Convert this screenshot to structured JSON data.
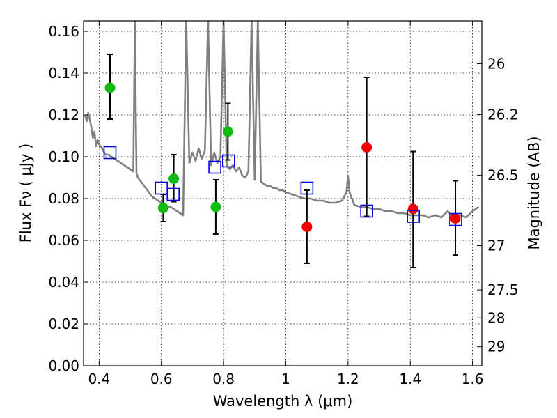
{
  "chart_data": {
    "type": "scatter",
    "xlabel": "Wavelength  λ (μm)",
    "ylabel": "Flux  Fν  ( μJy )",
    "y2label": "Magnitude (AB)",
    "xlim": [
      0.35,
      1.63
    ],
    "ylim": [
      0.0,
      0.165
    ],
    "x_ticks": [
      0.4,
      0.6,
      0.8,
      1.0,
      1.2,
      1.4,
      1.6
    ],
    "x_tick_labels": [
      "0.4",
      "0.6",
      "0.8",
      "1",
      "1.2",
      "1.4",
      "1.6"
    ],
    "y_ticks": [
      0.0,
      0.02,
      0.04,
      0.06,
      0.08,
      0.1,
      0.12,
      0.14,
      0.16
    ],
    "y_tick_labels": [
      "0.00",
      "0.02",
      "0.04",
      "0.06",
      "0.08",
      "0.10",
      "0.12",
      "0.14",
      "0.16"
    ],
    "y2_ticks": [
      {
        "label": "26",
        "flux": 0.1445
      },
      {
        "label": "26.2",
        "flux": 0.1202
      },
      {
        "label": "26.5",
        "flux": 0.0912
      },
      {
        "label": "27",
        "flux": 0.0575
      },
      {
        "label": "27.5",
        "flux": 0.0363
      },
      {
        "label": "28",
        "flux": 0.0229
      },
      {
        "label": "29",
        "flux": 0.0091
      }
    ],
    "grid": true,
    "colors": {
      "model": "#808080",
      "green": "#11bb11",
      "red": "#ee0000",
      "box": "#0000dd",
      "errbar": "#000000"
    },
    "model_spectrum": {
      "x": [
        0.355,
        0.36,
        0.365,
        0.37,
        0.375,
        0.38,
        0.385,
        0.39,
        0.395,
        0.4,
        0.41,
        0.42,
        0.43,
        0.44,
        0.45,
        0.46,
        0.47,
        0.48,
        0.49,
        0.5,
        0.51,
        0.515,
        0.52,
        0.525,
        0.53,
        0.54,
        0.55,
        0.56,
        0.57,
        0.58,
        0.59,
        0.6,
        0.61,
        0.62,
        0.63,
        0.64,
        0.65,
        0.66,
        0.67,
        0.68,
        0.69,
        0.7,
        0.71,
        0.72,
        0.73,
        0.74,
        0.75,
        0.76,
        0.77,
        0.78,
        0.79,
        0.8,
        0.81,
        0.82,
        0.83,
        0.84,
        0.85,
        0.86,
        0.87,
        0.88,
        0.89,
        0.9,
        0.91,
        0.92,
        0.93,
        0.94,
        0.95,
        0.96,
        0.97,
        0.98,
        0.99,
        1.0,
        1.02,
        1.04,
        1.06,
        1.08,
        1.1,
        1.12,
        1.14,
        1.16,
        1.18,
        1.195,
        1.2,
        1.205,
        1.22,
        1.24,
        1.26,
        1.28,
        1.3,
        1.32,
        1.34,
        1.36,
        1.38,
        1.4,
        1.42,
        1.44,
        1.46,
        1.48,
        1.5,
        1.52,
        1.54,
        1.56,
        1.58,
        1.6,
        1.62
      ],
      "y": [
        0.12,
        0.117,
        0.121,
        0.118,
        0.114,
        0.109,
        0.112,
        0.105,
        0.108,
        0.106,
        0.104,
        0.101,
        0.101,
        0.1,
        0.099,
        0.098,
        0.097,
        0.096,
        0.095,
        0.094,
        0.093,
        0.165,
        0.092,
        0.09,
        0.089,
        0.087,
        0.085,
        0.083,
        0.081,
        0.08,
        0.079,
        0.078,
        0.077,
        0.076,
        0.076,
        0.075,
        0.074,
        0.073,
        0.072,
        0.165,
        0.097,
        0.102,
        0.098,
        0.104,
        0.099,
        0.103,
        0.165,
        0.096,
        0.102,
        0.097,
        0.1,
        0.165,
        0.096,
        0.094,
        0.096,
        0.093,
        0.095,
        0.091,
        0.09,
        0.093,
        0.165,
        0.089,
        0.165,
        0.088,
        0.087,
        0.086,
        0.086,
        0.085,
        0.085,
        0.084,
        0.084,
        0.083,
        0.082,
        0.081,
        0.08,
        0.08,
        0.079,
        0.079,
        0.078,
        0.078,
        0.079,
        0.083,
        0.091,
        0.083,
        0.077,
        0.076,
        0.076,
        0.075,
        0.075,
        0.074,
        0.074,
        0.073,
        0.073,
        0.072,
        0.072,
        0.072,
        0.071,
        0.072,
        0.071,
        0.074,
        0.071,
        0.072,
        0.071,
        0.074,
        0.076
      ]
    },
    "series": [
      {
        "marker": "circle",
        "color": "green",
        "points": [
          {
            "x": 0.435,
            "y": 0.133,
            "yerr_lo": 0.118,
            "yerr_hi": 0.149
          },
          {
            "x": 0.606,
            "y": 0.0755,
            "yerr_lo": 0.069,
            "yerr_hi": 0.082
          },
          {
            "x": 0.64,
            "y": 0.0895,
            "yerr_lo": 0.0785,
            "yerr_hi": 0.101
          },
          {
            "x": 0.775,
            "y": 0.076,
            "yerr_lo": 0.063,
            "yerr_hi": 0.089
          },
          {
            "x": 0.814,
            "y": 0.112,
            "yerr_lo": 0.0985,
            "yerr_hi": 0.1255
          }
        ]
      },
      {
        "marker": "circle",
        "color": "red",
        "points": [
          {
            "x": 1.068,
            "y": 0.0665,
            "yerr_lo": 0.049,
            "yerr_hi": 0.084
          },
          {
            "x": 1.26,
            "y": 0.1045,
            "yerr_lo": 0.0715,
            "yerr_hi": 0.138
          },
          {
            "x": 1.409,
            "y": 0.075,
            "yerr_lo": 0.047,
            "yerr_hi": 0.1025
          },
          {
            "x": 1.545,
            "y": 0.0705,
            "yerr_lo": 0.053,
            "yerr_hi": 0.0885
          }
        ]
      },
      {
        "marker": "open-square",
        "color": "box",
        "points": [
          {
            "x": 0.435,
            "y": 0.102
          },
          {
            "x": 0.6,
            "y": 0.085
          },
          {
            "x": 0.638,
            "y": 0.082
          },
          {
            "x": 0.772,
            "y": 0.095
          },
          {
            "x": 0.816,
            "y": 0.098
          },
          {
            "x": 1.068,
            "y": 0.085
          },
          {
            "x": 1.26,
            "y": 0.074
          },
          {
            "x": 1.41,
            "y": 0.0715
          },
          {
            "x": 1.546,
            "y": 0.07
          }
        ]
      }
    ]
  }
}
